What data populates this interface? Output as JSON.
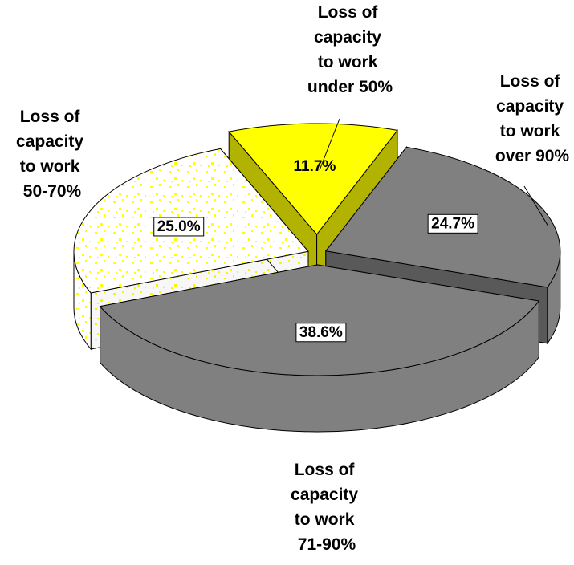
{
  "chart_data": {
    "type": "pie",
    "categories": [
      "Loss of capacity to work under 50%",
      "Loss of capacity to work over 90%",
      "Loss of capacity to work 71-90%",
      "Loss of capacity to work 50-70%"
    ],
    "values": [
      11.7,
      24.7,
      38.6,
      25.0
    ],
    "value_labels": [
      "11.7%",
      "24.7%",
      "38.6%",
      "25.0%"
    ],
    "colors": [
      "#ffff00",
      "#808080",
      "#808080",
      "#ffffff"
    ]
  }
}
